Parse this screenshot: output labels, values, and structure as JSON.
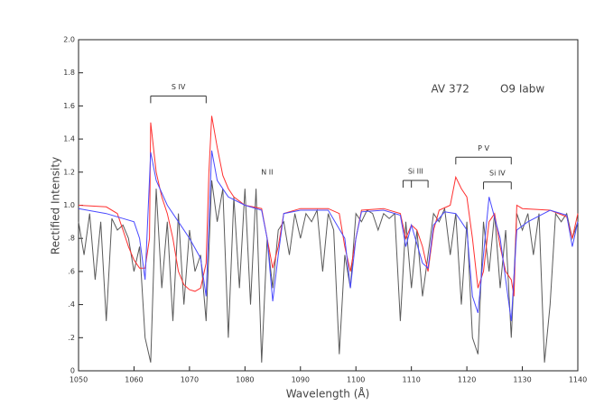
{
  "chart_data": {
    "type": "line",
    "xlabel": "Wavelength (Å)",
    "ylabel": "Rectified Intensity",
    "xlim": [
      1050,
      1140
    ],
    "xticks": [
      1050,
      1060,
      1070,
      1080,
      1090,
      1100,
      1110,
      1120,
      1130,
      1140
    ],
    "ylim": [
      0,
      2
    ],
    "yticks": [
      0,
      {
        "value": 0.2,
        "label": ".2"
      },
      {
        "value": 0.4,
        "label": ".4"
      },
      {
        "value": 0.6,
        "label": ".6"
      },
      {
        "value": 0.8,
        "label": ".8"
      },
      {
        "value": 1,
        "label": "1.0"
      },
      1.2,
      1.4,
      1.6,
      1.8,
      {
        "value": 2,
        "label": "2.0"
      }
    ],
    "series": [
      {
        "color": "#5a5a5a",
        "x": [
          1050,
          1051,
          1052,
          1053,
          1054,
          1055,
          1056,
          1057,
          1058,
          1059,
          1060,
          1061,
          1062,
          1063,
          1064,
          1065,
          1066,
          1067,
          1068,
          1069,
          1070,
          1071,
          1072,
          1073,
          1074,
          1075,
          1076,
          1077,
          1078,
          1079,
          1080,
          1081,
          1082,
          1083,
          1084,
          1085,
          1086,
          1087,
          1088,
          1089,
          1090,
          1091,
          1092,
          1093,
          1094,
          1095,
          1096,
          1097,
          1098,
          1099,
          1100,
          1101,
          1102,
          1103,
          1104,
          1105,
          1106,
          1107,
          1108,
          1109,
          1110,
          1111,
          1112,
          1113,
          1114,
          1115,
          1116,
          1117,
          1118,
          1119,
          1120,
          1121,
          1122,
          1123,
          1124,
          1125,
          1126,
          1127,
          1128,
          1129,
          1130,
          1131,
          1132,
          1133,
          1134,
          1135,
          1136,
          1137,
          1138,
          1139,
          1140
        ],
        "values": [
          0.9,
          0.7,
          0.95,
          0.55,
          0.9,
          0.3,
          0.92,
          0.85,
          0.88,
          0.8,
          0.6,
          0.75,
          0.2,
          0.05,
          1.1,
          0.5,
          0.9,
          0.3,
          0.95,
          0.4,
          0.85,
          0.6,
          0.7,
          0.3,
          1.15,
          0.9,
          1.1,
          0.2,
          1.05,
          0.5,
          1.1,
          0.4,
          1.1,
          0.05,
          0.8,
          0.5,
          0.85,
          0.9,
          0.7,
          0.95,
          0.8,
          0.95,
          0.9,
          0.97,
          0.6,
          0.95,
          0.85,
          0.1,
          0.7,
          0.5,
          0.95,
          0.9,
          0.97,
          0.95,
          0.85,
          0.95,
          0.92,
          0.95,
          0.3,
          0.9,
          0.5,
          0.85,
          0.45,
          0.7,
          0.95,
          0.9,
          0.98,
          0.7,
          0.95,
          0.4,
          0.9,
          0.2,
          0.1,
          0.9,
          0.6,
          0.95,
          0.5,
          0.85,
          0.2,
          0.95,
          0.85,
          0.95,
          0.7,
          0.95,
          0.05,
          0.4,
          0.95,
          0.9,
          0.95,
          0.8,
          0.9
        ]
      },
      {
        "color": "#ff3030",
        "x": [
          1050,
          1055,
          1057,
          1058,
          1059,
          1060,
          1061,
          1062,
          1062.8,
          1063,
          1064,
          1065,
          1066,
          1067,
          1068,
          1069,
          1070,
          1071,
          1072,
          1073,
          1073.5,
          1074,
          1075,
          1076,
          1077,
          1078,
          1080,
          1083,
          1084,
          1085,
          1086,
          1087,
          1090,
          1095,
          1097,
          1098,
          1099,
          1100,
          1101,
          1105,
          1108,
          1109,
          1110,
          1111,
          1112,
          1113,
          1114,
          1115,
          1117,
          1118,
          1119,
          1120,
          1121,
          1122,
          1123,
          1124,
          1125,
          1126,
          1127,
          1128,
          1128.5,
          1129,
          1130,
          1135,
          1138,
          1139,
          1140
        ],
        "values": [
          1.0,
          0.99,
          0.95,
          0.85,
          0.75,
          0.67,
          0.62,
          0.62,
          0.8,
          1.5,
          1.2,
          1.05,
          0.95,
          0.8,
          0.6,
          0.52,
          0.49,
          0.48,
          0.5,
          0.65,
          1.2,
          1.54,
          1.35,
          1.18,
          1.1,
          1.05,
          1.0,
          0.98,
          0.8,
          0.62,
          0.75,
          0.95,
          0.98,
          0.98,
          0.95,
          0.75,
          0.6,
          0.8,
          0.97,
          0.98,
          0.95,
          0.8,
          0.88,
          0.85,
          0.75,
          0.6,
          0.85,
          0.97,
          1.0,
          1.17,
          1.1,
          1.05,
          0.8,
          0.5,
          0.6,
          0.9,
          0.95,
          0.75,
          0.6,
          0.55,
          0.45,
          1.0,
          0.98,
          0.97,
          0.93,
          0.8,
          0.95
        ]
      },
      {
        "color": "#4a4aff",
        "x": [
          1050,
          1055,
          1058,
          1060,
          1061,
          1062,
          1063,
          1064,
          1066,
          1068,
          1070,
          1072,
          1073,
          1074,
          1075,
          1077,
          1080,
          1083,
          1084,
          1085,
          1086,
          1087,
          1090,
          1095,
          1098,
          1099,
          1100,
          1101,
          1105,
          1108,
          1109,
          1110,
          1112,
          1113,
          1114,
          1116,
          1118,
          1119,
          1120,
          1121,
          1122,
          1123,
          1124,
          1126,
          1127,
          1128,
          1129,
          1131,
          1135,
          1138,
          1139,
          1140
        ],
        "values": [
          0.98,
          0.95,
          0.92,
          0.9,
          0.8,
          0.55,
          1.32,
          1.15,
          1.0,
          0.9,
          0.8,
          0.68,
          0.45,
          1.33,
          1.15,
          1.05,
          1.0,
          0.97,
          0.8,
          0.42,
          0.7,
          0.95,
          0.97,
          0.97,
          0.8,
          0.5,
          0.8,
          0.96,
          0.97,
          0.94,
          0.75,
          0.88,
          0.65,
          0.62,
          0.88,
          0.96,
          0.95,
          0.9,
          0.85,
          0.45,
          0.35,
          0.7,
          1.05,
          0.8,
          0.55,
          0.3,
          0.85,
          0.9,
          0.97,
          0.94,
          0.75,
          0.9
        ]
      }
    ],
    "annotations": [
      {
        "text": "S IV",
        "x": [
          1063,
          1073
        ],
        "y": 1.66
      },
      {
        "text": "N II",
        "x": [
          1084
        ],
        "y": 1.2
      },
      {
        "text": "Si III",
        "x": [
          1108.5,
          1110,
          1113
        ],
        "y": 1.15
      },
      {
        "text": "P V",
        "x": [
          1118,
          1128
        ],
        "y": 1.29
      },
      {
        "text": "Si IV",
        "x": [
          1123,
          1128
        ],
        "y": 1.14
      },
      {
        "text": "AV 372",
        "x": [
          1117
        ],
        "y": 1.7
      },
      {
        "text": "O9 Iabw",
        "x": [
          1130
        ],
        "y": 1.7
      }
    ]
  }
}
